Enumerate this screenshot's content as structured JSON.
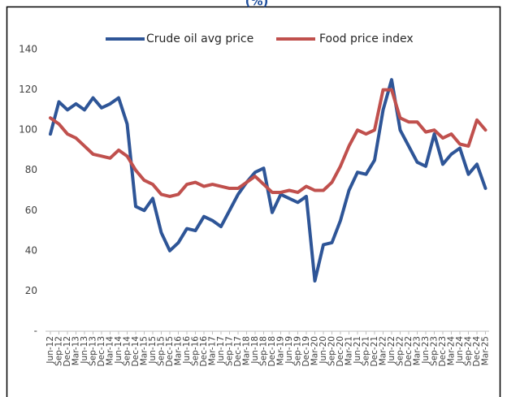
{
  "chart_data": {
    "type": "line",
    "title": "(%)",
    "categories": [
      "Jun-12",
      "Sep-12",
      "Dec-12",
      "Mar-13",
      "Jun-13",
      "Sep-13",
      "Dec-13",
      "Mar-14",
      "Jun-14",
      "Sep-14",
      "Dec-14",
      "Mar-15",
      "Jun-15",
      "Sep-15",
      "Dec-15",
      "Mar-16",
      "Jun-16",
      "Sep-16",
      "Dec-16",
      "Mar-17",
      "Jun-17",
      "Sep-17",
      "Dec-17",
      "Mar-18",
      "Jun-18",
      "Sep-18",
      "Dec-18",
      "Mar-19",
      "Jun-19",
      "Sep-19",
      "Dec-19",
      "Mar-20",
      "Jun-20",
      "Sep-20",
      "Dec-20",
      "Mar-21",
      "Jun-21",
      "Sep-21",
      "Dec-21",
      "Mar-22",
      "Jun-22",
      "Sep-22",
      "Dec-22",
      "Mar-23",
      "Jun-23",
      "Sep-23",
      "Dec-23",
      "Mar-24",
      "Jun-24",
      "Sep-24",
      "Dec-24",
      "Mar-25"
    ],
    "series": [
      {
        "name": "Crude oil avg price",
        "color": "#2e5597",
        "values": [
          98,
          114,
          110,
          113,
          110,
          116,
          111,
          113,
          116,
          103,
          62,
          60,
          66,
          49,
          40,
          44,
          51,
          50,
          57,
          55,
          52,
          60,
          68,
          74,
          79,
          81,
          59,
          68,
          66,
          64,
          67,
          25,
          43,
          44,
          55,
          70,
          79,
          78,
          85,
          110,
          125,
          100,
          92,
          84,
          82,
          98,
          83,
          88,
          91,
          78,
          83,
          71
        ]
      },
      {
        "name": "Food price index",
        "color": "#c0504d",
        "values": [
          106,
          103,
          98,
          96,
          92,
          88,
          87,
          86,
          90,
          87,
          80,
          75,
          73,
          68,
          67,
          68,
          73,
          74,
          72,
          73,
          72,
          71,
          71,
          74,
          77,
          73,
          69,
          69,
          70,
          69,
          72,
          70,
          70,
          74,
          82,
          92,
          100,
          98,
          100,
          120,
          120,
          106,
          104,
          104,
          99,
          100,
          96,
          98,
          93,
          92,
          105,
          100
        ]
      }
    ],
    "ylim": [
      0,
      140
    ],
    "yticks": [
      {
        "value": 0,
        "label": "-"
      },
      20,
      40,
      60,
      80,
      100,
      120,
      140
    ],
    "legend": "top"
  }
}
